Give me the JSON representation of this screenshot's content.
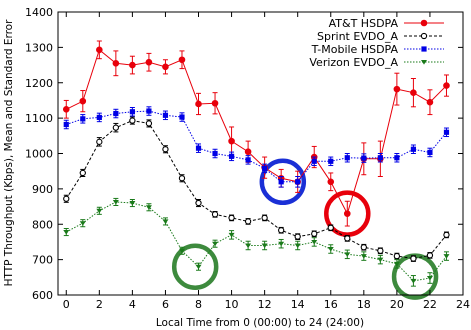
{
  "chart_data": {
    "type": "line",
    "title": "",
    "xlabel": "Local Time from 0 (00:00) to 24 (24:00)",
    "ylabel": "HTTP Throughput (Kbps), Mean and Standard Error",
    "xlim": [
      -0.5,
      24
    ],
    "ylim": [
      600,
      1400
    ],
    "xticks": [
      0,
      2,
      4,
      6,
      8,
      10,
      12,
      14,
      16,
      18,
      20,
      22,
      24
    ],
    "yticks": [
      600,
      700,
      800,
      900,
      1000,
      1100,
      1200,
      1300,
      1400
    ],
    "grid": false,
    "legend_position": "top-right",
    "x": [
      0,
      1,
      2,
      3,
      4,
      5,
      6,
      7,
      8,
      9,
      10,
      11,
      12,
      13,
      14,
      15,
      16,
      17,
      18,
      19,
      20,
      21,
      22,
      23
    ],
    "series": [
      {
        "name": "AT&T HSDPA",
        "color": "#e8000b",
        "marker": "filled-circle",
        "line": "solid",
        "values": [
          1125,
          1148,
          1293,
          1255,
          1250,
          1258,
          1245,
          1265,
          1140,
          1142,
          1035,
          1005,
          960,
          930,
          920,
          990,
          920,
          830,
          985,
          985,
          1182,
          1172,
          1145,
          1192
        ],
        "errors": [
          25,
          30,
          25,
          35,
          25,
          25,
          20,
          25,
          30,
          30,
          40,
          30,
          30,
          25,
          30,
          30,
          25,
          35,
          45,
          50,
          45,
          40,
          35,
          30
        ]
      },
      {
        "name": "Sprint EVDO_A",
        "color": "#000000",
        "marker": "open-circle",
        "line": "dashed",
        "values": [
          872,
          945,
          1033,
          1073,
          1093,
          1085,
          1012,
          930,
          860,
          828,
          818,
          808,
          818,
          783,
          765,
          773,
          790,
          760,
          735,
          725,
          710,
          703,
          712,
          770
        ],
        "errors": [
          10,
          10,
          12,
          12,
          10,
          10,
          10,
          10,
          10,
          8,
          8,
          8,
          8,
          8,
          8,
          8,
          8,
          8,
          8,
          8,
          8,
          8,
          8,
          8
        ]
      },
      {
        "name": "T-Mobile HSDPA",
        "color": "#0000e6",
        "marker": "filled-square",
        "line": "dotted",
        "values": [
          1082,
          1098,
          1102,
          1113,
          1118,
          1120,
          1108,
          1103,
          1015,
          1000,
          992,
          982,
          958,
          920,
          920,
          978,
          978,
          988,
          987,
          988,
          988,
          1012,
          1003,
          1060
        ],
        "errors": [
          12,
          12,
          12,
          12,
          12,
          12,
          12,
          12,
          12,
          12,
          12,
          12,
          12,
          15,
          15,
          12,
          12,
          12,
          12,
          12,
          12,
          12,
          12,
          12
        ]
      },
      {
        "name": "Verizon EVDO_A",
        "color": "#1a7a1a",
        "marker": "filled-triangle-down",
        "line": "dotted",
        "values": [
          778,
          803,
          838,
          863,
          860,
          848,
          808,
          725,
          680,
          745,
          770,
          740,
          740,
          745,
          740,
          750,
          730,
          715,
          710,
          700,
          688,
          640,
          648,
          710
        ],
        "errors": [
          10,
          10,
          10,
          10,
          10,
          10,
          10,
          10,
          10,
          10,
          12,
          12,
          12,
          12,
          12,
          12,
          12,
          12,
          12,
          12,
          12,
          15,
          15,
          12
        ]
      }
    ],
    "annotations": [
      {
        "shape": "circle",
        "color": "#1a2fd6",
        "x": 13.1,
        "y": 920
      },
      {
        "shape": "circle",
        "color": "#e8000b",
        "x": 17.0,
        "y": 830
      },
      {
        "shape": "circle",
        "color": "#3d8a3d",
        "x": 7.8,
        "y": 680
      },
      {
        "shape": "circle",
        "color": "#3d8a3d",
        "x": 21.1,
        "y": 652
      }
    ]
  }
}
